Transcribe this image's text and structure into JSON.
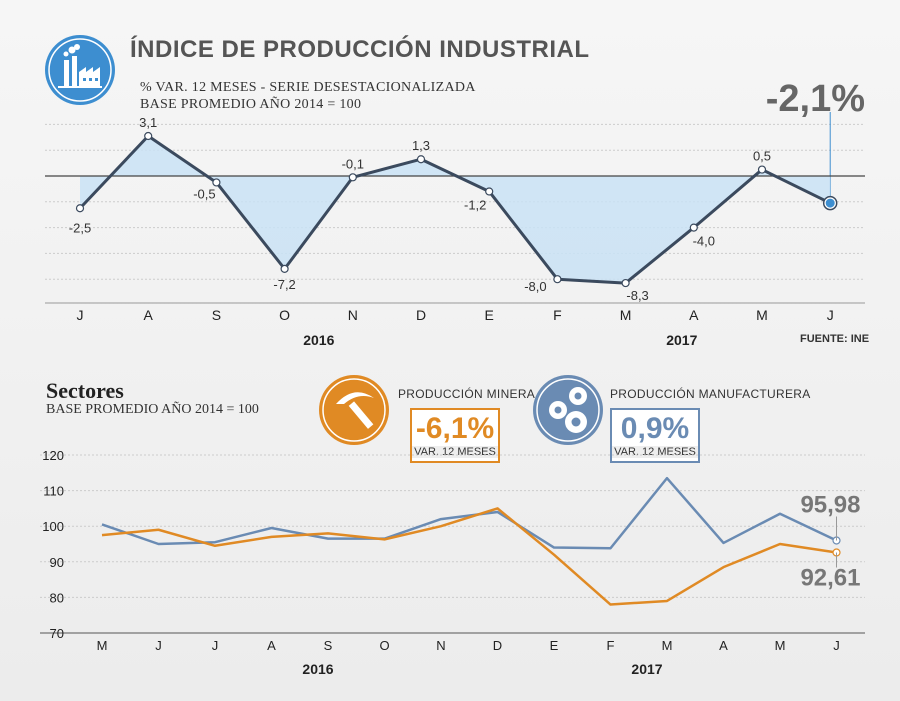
{
  "header": {
    "title": "ÍNDICE DE PRODUCCIÓN INDUSTRIAL",
    "subtitle1": "% VAR. 12 MESES - SERIE DESESTACIONALIZADA",
    "subtitle2": "BASE PROMEDIO AÑO 2014 = 100",
    "latest_value": "-2,1%",
    "source": "FUENTE: INE",
    "icon": "factory-icon"
  },
  "sectors": {
    "title": "Sectores",
    "subtitle": "BASE PROMEDIO AÑO 2014 = 100",
    "mining": {
      "label": "PRODUCCIÓN MINERA",
      "value": "-6,1%",
      "caption": "VAR. 12 MESES",
      "color": "#e08a24",
      "icon": "pickaxe-icon"
    },
    "manufacturing": {
      "label": "PRODUCCIÓN MANUFACTURERA",
      "value": "0,9%",
      "caption": "VAR. 12 MESES",
      "color": "#6a8bb3",
      "icon": "gears-icon"
    }
  },
  "chart_data": [
    {
      "type": "area",
      "categories": [
        "J",
        "A",
        "S",
        "O",
        "N",
        "D",
        "E",
        "F",
        "M",
        "A",
        "M",
        "J"
      ],
      "year_labels": [
        {
          "label": "2016",
          "at_index": 4
        },
        {
          "label": "2017",
          "at_index": 9
        }
      ],
      "values": [
        -2.5,
        3.1,
        -0.5,
        -7.2,
        -0.1,
        1.3,
        -1.2,
        -8.0,
        -8.3,
        -4.0,
        0.5,
        -2.1
      ],
      "data_labels": [
        "-2,5",
        "3,1",
        "-0,5",
        "-7,2",
        "-0,1",
        "1,3",
        "-1,2",
        "-8,0",
        "-8,3",
        "-4,0",
        "0,5",
        ""
      ],
      "ylim": [
        -9,
        5
      ],
      "colors": {
        "line": "#3b4a5e",
        "fill": "#c9e2f5"
      },
      "grid": true
    },
    {
      "type": "line",
      "categories": [
        "M",
        "J",
        "J",
        "A",
        "S",
        "O",
        "N",
        "D",
        "E",
        "F",
        "M",
        "A",
        "M",
        "J"
      ],
      "year_labels": [
        {
          "label": "2016",
          "at_index": 4
        },
        {
          "label": "2017",
          "at_index": 10
        }
      ],
      "yticks": [
        70,
        80,
        90,
        100,
        110,
        120
      ],
      "ylim": [
        70,
        120
      ],
      "series": [
        {
          "name": "PRODUCCIÓN MANUFACTURERA",
          "color": "#6a8bb3",
          "values": [
            100.5,
            95.0,
            95.5,
            99.5,
            96.5,
            96.5,
            102.0,
            104.0,
            94.0,
            93.8,
            113.5,
            95.3,
            103.5,
            95.98
          ],
          "end_label": "95,98"
        },
        {
          "name": "PRODUCCIÓN MINERA",
          "color": "#e08a24",
          "values": [
            97.5,
            99.0,
            94.5,
            97.0,
            98.0,
            96.3,
            100.0,
            105.0,
            92.0,
            78.0,
            79.0,
            88.5,
            95.0,
            92.61
          ],
          "end_label": "92,61"
        }
      ],
      "grid": true
    }
  ]
}
